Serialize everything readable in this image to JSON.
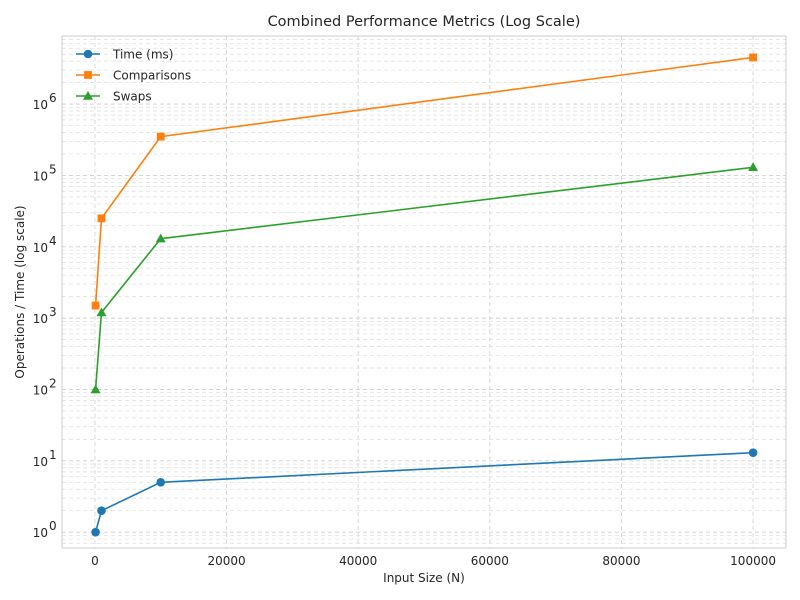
{
  "chart_data": {
    "type": "line",
    "title": "Combined Performance Metrics (Log Scale)",
    "xlabel": "Input Size (N)",
    "ylabel": "Operations / Time (log scale)",
    "x": [
      100,
      1000,
      10000,
      100000
    ],
    "xlim": [
      -5000,
      105000
    ],
    "xticks": [
      0,
      20000,
      40000,
      60000,
      80000,
      100000
    ],
    "yscale": "log",
    "ylim": [
      0.6,
      9000000
    ],
    "yticks": [
      1,
      10,
      100,
      1000,
      10000,
      100000,
      1000000
    ],
    "grid": "major and minor",
    "legend_position": "top-left",
    "series": [
      {
        "name": "Time (ms)",
        "marker": "circle",
        "color": "#1f77b4",
        "values": [
          1,
          2,
          5,
          13
        ]
      },
      {
        "name": "Comparisons",
        "marker": "square",
        "color": "#ff7f0e",
        "values": [
          1500,
          25000,
          350000,
          4500000
        ]
      },
      {
        "name": "Swaps",
        "marker": "triangle",
        "color": "#2ca02c",
        "values": [
          100,
          1200,
          13000,
          130000
        ]
      }
    ]
  }
}
